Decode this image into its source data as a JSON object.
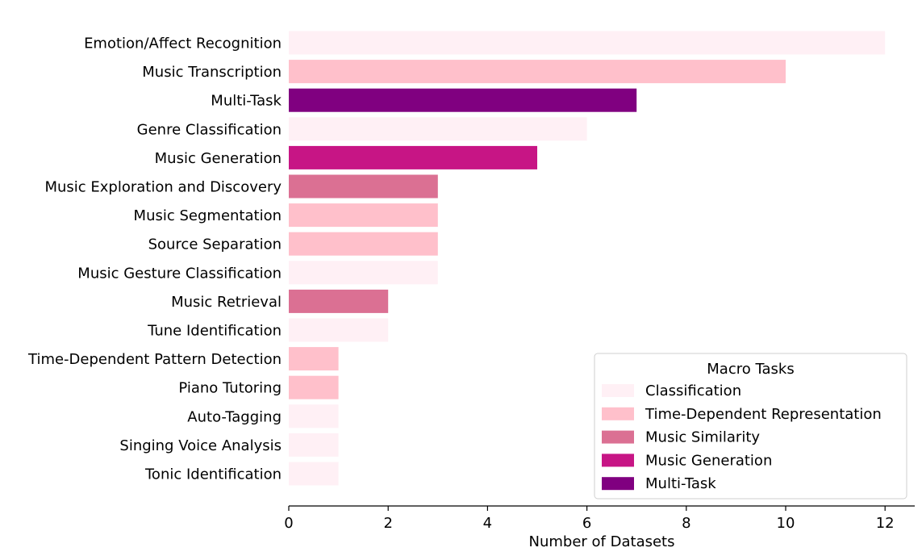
{
  "chart_data": {
    "type": "bar",
    "orientation": "horizontal",
    "title": "",
    "xlabel": "Number of Datasets",
    "ylabel": "",
    "xlim": [
      0,
      12.6
    ],
    "xticks": [
      "0",
      "2",
      "4",
      "6",
      "8",
      "10",
      "12"
    ],
    "grid": false,
    "legend_position": "lower-right",
    "legend": {
      "title": "Macro Tasks",
      "entries": [
        {
          "name": "Classification",
          "color": "#FFF0F5"
        },
        {
          "name": "Time-Dependent Representation",
          "color": "#FFC0CB"
        },
        {
          "name": "Music Similarity",
          "color": "#DB7093"
        },
        {
          "name": "Music Generation",
          "color": "#C71585"
        },
        {
          "name": "Multi-Task",
          "color": "#800080"
        }
      ]
    },
    "categories": [
      "Emotion/Affect Recognition",
      "Music Transcription",
      "Multi-Task",
      "Genre Classification",
      "Music Generation",
      "Music Exploration and Discovery",
      "Music Segmentation",
      "Source Separation",
      "Music Gesture Classification",
      "Music Retrieval",
      "Tune Identification",
      "Time-Dependent Pattern Detection",
      "Piano Tutoring",
      "Auto-Tagging",
      "Singing Voice Analysis",
      "Tonic Identification"
    ],
    "values": [
      12,
      10,
      7,
      6,
      5,
      3,
      3,
      3,
      3,
      2,
      2,
      1,
      1,
      1,
      1,
      1
    ],
    "macro_task": [
      "Classification",
      "Time-Dependent Representation",
      "Multi-Task",
      "Classification",
      "Music Generation",
      "Music Similarity",
      "Time-Dependent Representation",
      "Time-Dependent Representation",
      "Classification",
      "Music Similarity",
      "Classification",
      "Time-Dependent Representation",
      "Time-Dependent Representation",
      "Classification",
      "Classification",
      "Classification"
    ]
  }
}
